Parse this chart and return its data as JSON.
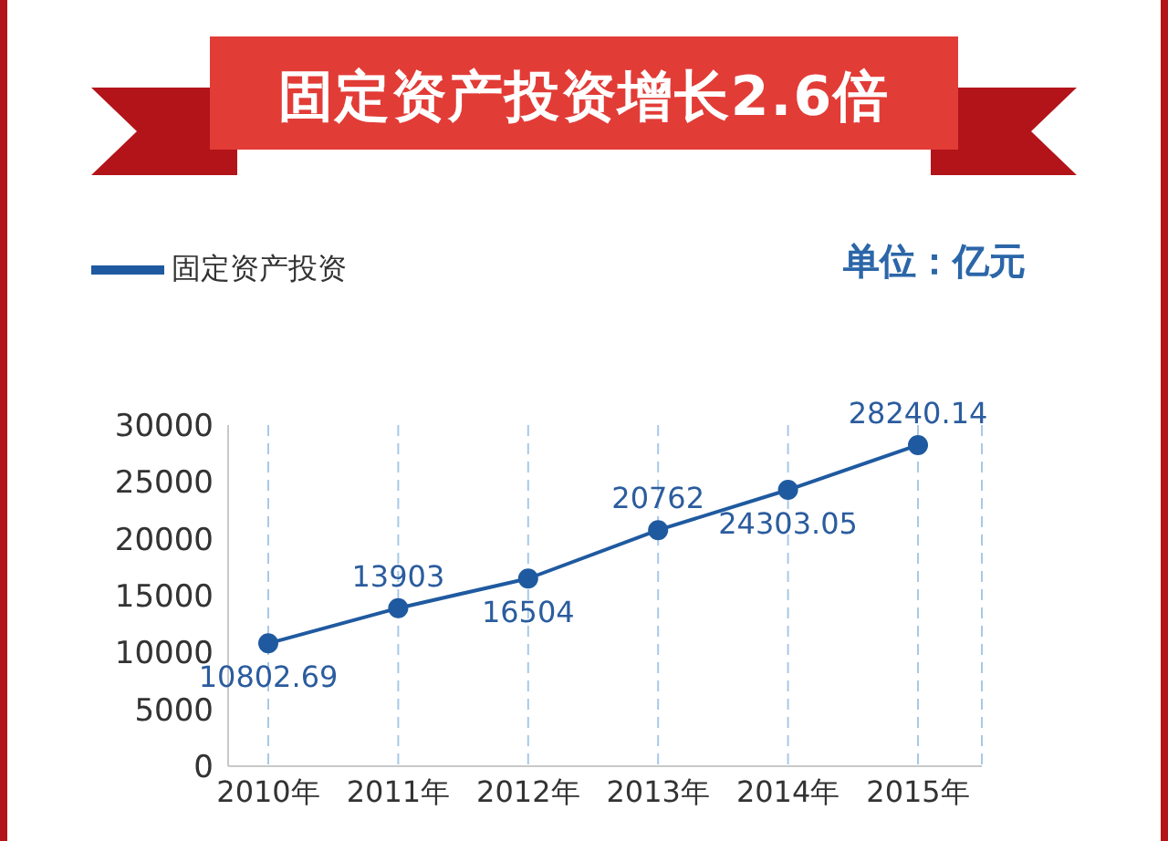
{
  "chart_data": {
    "type": "line",
    "title": "固定资产投资增长2.6倍",
    "annotations": [
      "单位：亿元"
    ],
    "categories": [
      "2010年",
      "2011年",
      "2012年",
      "2013年",
      "2014年",
      "2015年"
    ],
    "series": [
      {
        "name": "固定资产投资",
        "color": "#1f5aa0",
        "values": [
          10802.69,
          13903,
          16504,
          20762,
          24303.05,
          28240.14
        ]
      }
    ],
    "ylim": [
      0,
      30000
    ],
    "yticks": [
      0,
      5000,
      10000,
      15000,
      20000,
      25000,
      30000
    ],
    "grid": "x",
    "legend": "top left",
    "marker": "circle",
    "line_style": "solid",
    "data_labels": true
  }
}
